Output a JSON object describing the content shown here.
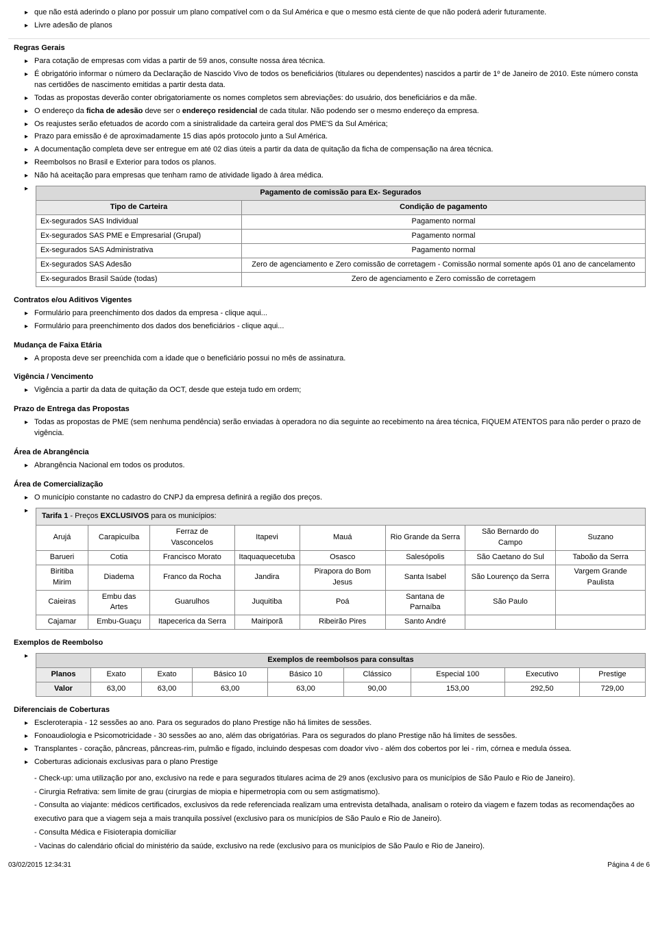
{
  "intro_bullets": [
    "que não está aderindo o plano por possuir um plano compatível com o da Sul América e que o mesmo está ciente de que não poderá aderir futuramente.",
    "Livre adesão de planos"
  ],
  "regras_gerais": {
    "title": "Regras Gerais",
    "items": [
      "Para cotação de empresas com vidas a partir de 59 anos, consulte nossa área técnica.",
      "É obrigatório informar o número da Declaração de Nascido Vivo de todos os beneficiários (titulares ou dependentes) nascidos a partir de 1º de Janeiro de 2010. Este número consta nas certidões de nascimento emitidas a partir desta data.",
      "Todas as propostas deverão conter obrigatoriamente os nomes completos sem abreviações: do usuário, dos beneficiários e da mãe.",
      "___HTML___O endereço da <b>ficha de adesão</b> deve ser o <b>endereço residencial</b> de cada titular.  Não podendo ser o mesmo endereço da empresa.",
      "Os reajustes serão efetuados de acordo com a sinistralidade da carteira geral dos PME'S da Sul América;",
      "Prazo para emissão é de aproximadamente 15 dias após protocolo junto a Sul América.",
      "A documentação completa deve ser entregue em até 02 dias úteis a partir da data de quitação da ficha de compensação na área técnica.",
      "Reembolsos no Brasil e Exterior para todos os planos.",
      "Não há aceitação para empresas que tenham ramo de atividade ligado à área médica.",
      ""
    ]
  },
  "comissao": {
    "title": "Pagamento de comissão para Ex- Segurados",
    "col1": "Tipo de Carteira",
    "col2": "Condição de pagamento",
    "rows": [
      [
        "Ex-segurados SAS Individual",
        "Pagamento normal"
      ],
      [
        "Ex-segurados SAS PME e Empresarial (Grupal)",
        "Pagamento normal"
      ],
      [
        "Ex-segurados SAS Administrativa",
        "Pagamento normal"
      ],
      [
        "Ex-segurados SAS Adesão",
        "Zero de agenciamento e Zero comissão de corretagem - Comissão normal somente após 01 ano de cancelamento"
      ],
      [
        "Ex-segurados Brasil Saúde (todas)",
        "Zero de agenciamento e Zero comissão de corretagem"
      ]
    ]
  },
  "contratos": {
    "title": "Contratos e/ou Aditivos Vigentes",
    "items": [
      "Formulário para preenchimento dos dados da empresa - clique aqui...",
      "Formulário para preenchimento dos dados dos beneficiários - clique aqui..."
    ]
  },
  "faixa": {
    "title": "Mudança de Faixa Etária",
    "items": [
      "A proposta deve ser preenchida com a idade que o beneficiário possui no mês de assinatura."
    ]
  },
  "vigencia": {
    "title": "Vigência / Vencimento",
    "items": [
      "Vigência a partir da data de quitação da OCT, desde que esteja tudo em ordem;"
    ]
  },
  "prazo": {
    "title": "Prazo de Entrega das Propostas",
    "items": [
      "Todas as propostas de PME (sem nenhuma pendência) serão enviadas à operadora no dia seguinte ao recebimento na área técnica, FIQUEM ATENTOS para não perder o prazo de vigência."
    ]
  },
  "abrangencia": {
    "title": "Área de Abrangência",
    "items": [
      "Abrangência Nacional em todos os produtos."
    ]
  },
  "comercial": {
    "title": "Área de Comercialização",
    "items": [
      "O município constante no cadastro do CNPJ da empresa definirá a região dos preços.",
      ""
    ]
  },
  "tarifa": {
    "title_pre": "Tarifa 1",
    "title_mid": " - Preços ",
    "title_bold": "EXCLUSIVOS",
    "title_post": " para os municípios:",
    "rows": [
      [
        "Arujá",
        "Carapicuíba",
        "Ferraz de Vasconcelos",
        "Itapevi",
        "Mauá",
        "Rio Grande da Serra",
        "São Bernardo do Campo",
        "Suzano"
      ],
      [
        "Barueri",
        "Cotia",
        "Francisco Morato",
        "Itaquaquecetuba",
        "Osasco",
        "Salesópolis",
        "São Caetano do Sul",
        "Taboão da Serra"
      ],
      [
        "Biritiba Mirim",
        "Diadema",
        "Franco da Rocha",
        "Jandira",
        "Pirapora do Bom Jesus",
        "Santa Isabel",
        "São Lourenço da Serra",
        "Vargem Grande Paulista"
      ],
      [
        "Caieiras",
        "Embu das Artes",
        "Guarulhos",
        "Juquitiba",
        "Poá",
        "Santana de Parnaíba",
        "São Paulo",
        ""
      ],
      [
        "Cajamar",
        "Embu-Guaçu",
        "Itapecerica da Serra",
        "Mairiporã",
        "Ribeirão Pires",
        "Santo André",
        "",
        ""
      ]
    ]
  },
  "reembolso": {
    "title": "Exemplos de Reembolso",
    "header": "Exemplos de reembolsos para consultas",
    "row_planos_label": "Planos",
    "row_valor_label": "Valor",
    "planos": [
      "Exato",
      "Exato",
      "Básico 10",
      "Básico 10",
      "Clássico",
      "Especial 100",
      "Executivo",
      "Prestige"
    ],
    "valores": [
      "63,00",
      "63,00",
      "63,00",
      "63,00",
      "90,00",
      "153,00",
      "292,50",
      "729,00"
    ]
  },
  "diferenciais": {
    "title": "Diferenciais de Coberturas",
    "items": [
      "Escleroterapia - 12 sessões ao ano. Para os segurados do plano Prestige não há limites de sessões.",
      "Fonoaudiologia e Psicomotricidade - 30 sessões ao ano, além das obrigatórias. Para os segurados do plano Prestige não há limites de sessões.",
      "Transplantes - coração, pâncreas, pâncreas-rim, pulmão e fígado, incluindo despesas com doador vivo - além dos cobertos por lei - rim, córnea e medula óssea.",
      "Coberturas adicionais exclusivas para o plano Prestige"
    ],
    "sub": [
      "- Check-up: uma utilização por ano, exclusivo na rede e para segurados titulares acima de 29 anos (exclusivo para os municípios de São Paulo e Rio de Janeiro).",
      "- Cirurgia Refrativa: sem limite de grau (cirurgias de miopia e hipermetropia com ou sem astigmatismo).",
      "- Consulta ao viajante: médicos certificados, exclusivos da rede referenciada realizam uma entrevista detalhada, analisam o roteiro da viagem e fazem todas as recomendações ao executivo para que a viagem seja a mais tranquila possível (exclusivo para os municípios de São Paulo e Rio de Janeiro).",
      "- Consulta Médica e Fisioterapia domiciliar",
      "- Vacinas do calendário oficial do ministério da saúde, exclusivo na rede (exclusivo para os municípios de São Paulo e Rio de Janeiro)."
    ]
  },
  "footer": {
    "left": "03/02/2015 12:34:31",
    "right": "Página 4 de 6"
  },
  "colors": {
    "header_bg": "#d9d9d9",
    "border": "#888888"
  }
}
